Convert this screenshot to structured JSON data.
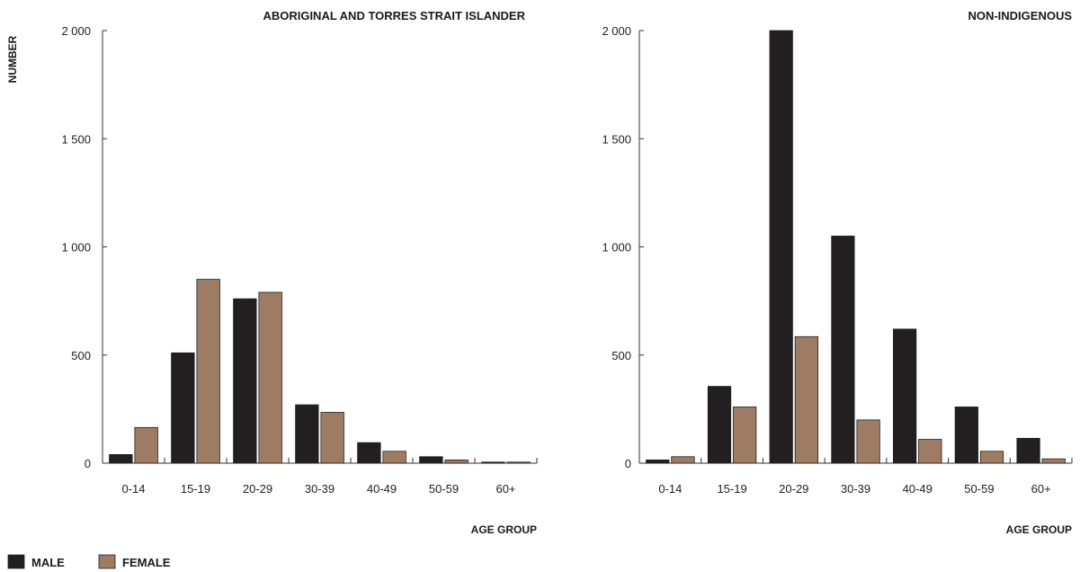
{
  "chart_data": [
    {
      "type": "bar",
      "title": "ABORIGINAL AND TORRES STRAIT ISLANDER",
      "ylabel": "NUMBER",
      "xlabel": "AGE GROUP",
      "categories": [
        "0-14",
        "15-19",
        "20-29",
        "30-39",
        "40-49",
        "50-59",
        "60+"
      ],
      "series": [
        {
          "name": "MALE",
          "color": "#231f20",
          "values": [
            40,
            510,
            760,
            270,
            95,
            30,
            5
          ]
        },
        {
          "name": "FEMALE",
          "color": "#9e7b63",
          "values": [
            165,
            850,
            790,
            235,
            55,
            15,
            5
          ]
        }
      ],
      "ylim": [
        0,
        2000
      ],
      "yticks": [
        0,
        500,
        1000,
        1500,
        2000
      ],
      "ytick_labels": [
        "0",
        "500",
        "1 000",
        "1 500",
        "2 000"
      ],
      "grid": false
    },
    {
      "type": "bar",
      "title": "NON-INDIGENOUS",
      "xlabel": "AGE GROUP",
      "categories": [
        "0-14",
        "15-19",
        "20-29",
        "30-39",
        "40-49",
        "50-59",
        "60+"
      ],
      "series": [
        {
          "name": "MALE",
          "color": "#231f20",
          "values": [
            15,
            355,
            2000,
            1050,
            620,
            260,
            115
          ]
        },
        {
          "name": "FEMALE",
          "color": "#9e7b63",
          "values": [
            30,
            260,
            585,
            200,
            110,
            55,
            20
          ]
        }
      ],
      "ylim": [
        0,
        2000
      ],
      "yticks": [
        0,
        500,
        1000,
        1500,
        2000
      ],
      "ytick_labels": [
        "0",
        "500",
        "1 000",
        "1 500",
        "2 000"
      ],
      "grid": false
    }
  ],
  "legend": {
    "placement": "bottom-left",
    "items": [
      {
        "label": "MALE",
        "color": "#231f20"
      },
      {
        "label": "FEMALE",
        "color": "#9e7b63"
      }
    ]
  }
}
